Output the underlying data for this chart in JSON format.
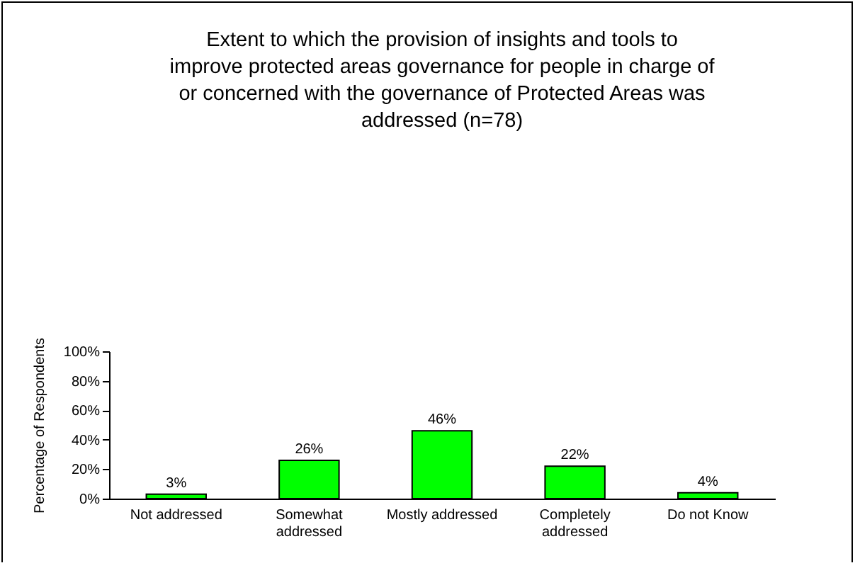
{
  "chart_data": {
    "type": "bar",
    "title": "Extent to which the provision of insights and tools to improve protected areas governance for people in charge of or concerned with the governance of Protected Areas was addressed (n=78)",
    "ylabel": "Percentage of Respondents",
    "categories": [
      "Not addressed",
      "Somewhat addressed",
      "Mostly addressed",
      "Completely addressed",
      "Do not Know"
    ],
    "values": [
      3,
      26,
      46,
      22,
      4
    ],
    "color": "#00ff00",
    "ylim": [
      0,
      100
    ],
    "yticks": [
      {
        "value": 0,
        "label": "0%"
      },
      {
        "value": 20,
        "label": "20%"
      },
      {
        "value": 40,
        "label": "40%"
      },
      {
        "value": 60,
        "label": "60%"
      },
      {
        "value": 80,
        "label": "80%"
      },
      {
        "value": 100,
        "label": "100%"
      }
    ],
    "value_labels": [
      "3%",
      "26%",
      "46%",
      "22%",
      "4%"
    ]
  }
}
